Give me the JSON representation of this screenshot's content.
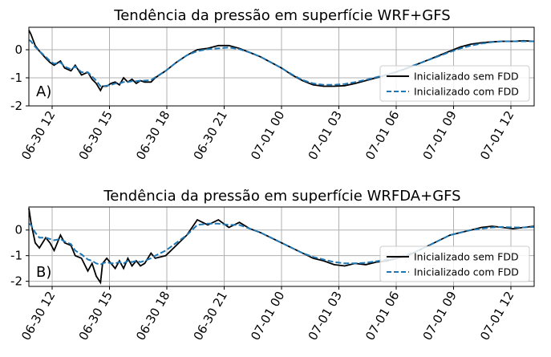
{
  "chart_data": [
    {
      "type": "line",
      "title": "Tendência da pressão em superfície WRF+GFS",
      "panel_label": "A)",
      "xlabel": "",
      "ylabel": "",
      "x_ticks": [
        "06-30 12",
        "06-30 15",
        "06-30 18",
        "06-30 21",
        "07-01 00",
        "07-01 03",
        "07-01 06",
        "07-01 09",
        "07-01 12"
      ],
      "y_ticks": [
        0,
        -1,
        -2
      ],
      "xlim": [
        0,
        24
      ],
      "ylim": [
        -2,
        0.8
      ],
      "grid": true,
      "legend_position": "lower right",
      "series": [
        {
          "name": "Inicializado sem FDD",
          "color": "#000000",
          "style": "solid",
          "x": [
            0,
            0.1,
            0.3,
            0.5,
            0.8,
            1.0,
            1.2,
            1.5,
            1.7,
            2.0,
            2.2,
            2.5,
            2.8,
            3.0,
            3.2,
            3.4,
            3.5,
            3.7,
            3.9,
            4.1,
            4.3,
            4.5,
            4.7,
            4.9,
            5.1,
            5.3,
            5.5,
            5.8,
            6.0,
            6.5,
            7,
            7.5,
            8,
            8.5,
            9,
            9.5,
            10,
            10.5,
            11,
            11.5,
            12,
            12.5,
            13,
            13.5,
            14,
            14.5,
            15,
            15.5,
            16,
            16.5,
            17,
            17.5,
            18,
            18.5,
            19,
            19.5,
            20,
            20.5,
            21,
            21.5,
            22,
            22.5,
            23,
            23.5,
            24
          ],
          "values": [
            0.7,
            0.55,
            0.15,
            -0.05,
            -0.3,
            -0.45,
            -0.55,
            -0.4,
            -0.65,
            -0.75,
            -0.55,
            -0.9,
            -0.8,
            -1.05,
            -1.2,
            -1.45,
            -1.3,
            -1.3,
            -1.2,
            -1.15,
            -1.25,
            -1.0,
            -1.15,
            -1.05,
            -1.2,
            -1.1,
            -1.15,
            -1.15,
            -1.0,
            -0.75,
            -0.45,
            -0.2,
            0.0,
            0.05,
            0.15,
            0.15,
            0.05,
            -0.1,
            -0.25,
            -0.45,
            -0.65,
            -0.9,
            -1.1,
            -1.25,
            -1.3,
            -1.3,
            -1.28,
            -1.2,
            -1.1,
            -1.0,
            -0.9,
            -0.78,
            -0.65,
            -0.5,
            -0.35,
            -0.2,
            -0.05,
            0.1,
            0.2,
            0.25,
            0.28,
            0.3,
            0.3,
            0.32,
            0.3
          ]
        },
        {
          "name": "Inicializado com FDD",
          "color": "#1f77b4",
          "style": "dashed",
          "x": [
            0,
            0.1,
            0.3,
            0.5,
            0.8,
            1.0,
            1.2,
            1.5,
            1.7,
            2.0,
            2.2,
            2.5,
            2.8,
            3.0,
            3.2,
            3.4,
            3.5,
            3.7,
            3.9,
            4.1,
            4.3,
            4.5,
            4.7,
            4.9,
            5.1,
            5.3,
            5.5,
            5.8,
            6.0,
            6.5,
            7,
            7.5,
            8,
            8.5,
            9,
            9.5,
            10,
            10.5,
            11,
            11.5,
            12,
            12.5,
            13,
            13.5,
            14,
            14.5,
            15,
            15.5,
            16,
            16.5,
            17,
            17.5,
            18,
            18.5,
            19,
            19.5,
            20,
            20.5,
            21,
            21.5,
            22,
            22.5,
            23,
            23.5,
            24
          ],
          "values": [
            0.35,
            0.3,
            0.1,
            -0.05,
            -0.25,
            -0.4,
            -0.5,
            -0.45,
            -0.6,
            -0.7,
            -0.6,
            -0.8,
            -0.8,
            -0.95,
            -1.1,
            -1.3,
            -1.3,
            -1.28,
            -1.25,
            -1.2,
            -1.2,
            -1.15,
            -1.15,
            -1.12,
            -1.12,
            -1.1,
            -1.1,
            -1.08,
            -0.98,
            -0.75,
            -0.45,
            -0.2,
            -0.05,
            0.02,
            0.05,
            0.08,
            0.02,
            -0.1,
            -0.25,
            -0.45,
            -0.65,
            -0.88,
            -1.08,
            -1.2,
            -1.25,
            -1.25,
            -1.22,
            -1.15,
            -1.07,
            -0.98,
            -0.88,
            -0.77,
            -0.63,
            -0.5,
            -0.36,
            -0.22,
            -0.08,
            0.05,
            0.15,
            0.22,
            0.27,
            0.3,
            0.3,
            0.3,
            0.3
          ]
        }
      ]
    },
    {
      "type": "line",
      "title": "Tendência da pressão em superfície WRFDA+GFS",
      "panel_label": "B)",
      "xlabel": "",
      "ylabel": "",
      "x_ticks": [
        "06-30 12",
        "06-30 15",
        "06-30 18",
        "06-30 21",
        "07-01 00",
        "07-01 03",
        "07-01 06",
        "07-01 09",
        "07-01 12"
      ],
      "y_ticks": [
        0,
        -1,
        -2
      ],
      "xlim": [
        0,
        24
      ],
      "ylim": [
        -2.2,
        0.9
      ],
      "grid": true,
      "legend_position": "lower right",
      "series": [
        {
          "name": "Inicializado sem FDD",
          "color": "#000000",
          "style": "solid",
          "x": [
            0,
            0.1,
            0.3,
            0.5,
            0.8,
            1.0,
            1.2,
            1.5,
            1.7,
            2.0,
            2.2,
            2.5,
            2.8,
            3.0,
            3.2,
            3.4,
            3.5,
            3.7,
            3.9,
            4.1,
            4.3,
            4.5,
            4.7,
            4.9,
            5.1,
            5.3,
            5.5,
            5.8,
            6.0,
            6.5,
            7,
            7.5,
            8,
            8.5,
            9,
            9.5,
            10,
            10.5,
            11,
            11.5,
            12,
            12.5,
            13,
            13.5,
            14,
            14.5,
            15,
            15.5,
            16,
            16.5,
            17,
            17.5,
            18,
            18.5,
            19,
            19.5,
            20,
            20.5,
            21,
            21.5,
            22,
            22.5,
            23,
            23.5,
            24
          ],
          "values": [
            0.85,
            0.3,
            -0.5,
            -0.7,
            -0.3,
            -0.5,
            -0.8,
            -0.2,
            -0.5,
            -0.6,
            -1.0,
            -1.1,
            -1.6,
            -1.3,
            -1.8,
            -2.05,
            -1.3,
            -1.1,
            -1.3,
            -1.5,
            -1.2,
            -1.5,
            -1.1,
            -1.4,
            -1.2,
            -1.4,
            -1.3,
            -0.9,
            -1.1,
            -1.0,
            -0.6,
            -0.2,
            0.4,
            0.2,
            0.4,
            0.1,
            0.3,
            0.05,
            -0.1,
            -0.3,
            -0.5,
            -0.7,
            -0.9,
            -1.1,
            -1.2,
            -1.35,
            -1.4,
            -1.3,
            -1.35,
            -1.25,
            -1.2,
            -1.1,
            -1.0,
            -0.8,
            -0.6,
            -0.4,
            -0.2,
            -0.1,
            0.0,
            0.1,
            0.15,
            0.1,
            0.05,
            0.1,
            0.15
          ]
        },
        {
          "name": "Inicializado com FDD",
          "color": "#1f77b4",
          "style": "dashed",
          "x": [
            0,
            0.1,
            0.3,
            0.5,
            0.8,
            1.0,
            1.2,
            1.5,
            1.7,
            2.0,
            2.2,
            2.5,
            2.8,
            3.0,
            3.2,
            3.4,
            3.5,
            3.7,
            3.9,
            4.1,
            4.3,
            4.5,
            4.7,
            4.9,
            5.1,
            5.3,
            5.5,
            5.8,
            6.0,
            6.5,
            7,
            7.5,
            8,
            8.5,
            9,
            9.5,
            10,
            10.5,
            11,
            11.5,
            12,
            12.5,
            13,
            13.5,
            14,
            14.5,
            15,
            15.5,
            16,
            16.5,
            17,
            17.5,
            18,
            18.5,
            19,
            19.5,
            20,
            20.5,
            21,
            21.5,
            22,
            22.5,
            23,
            23.5,
            24
          ],
          "values": [
            0.25,
            0.2,
            -0.1,
            -0.3,
            -0.3,
            -0.35,
            -0.4,
            -0.35,
            -0.45,
            -0.55,
            -0.8,
            -0.95,
            -1.15,
            -1.2,
            -1.3,
            -1.35,
            -1.3,
            -1.25,
            -1.3,
            -1.3,
            -1.25,
            -1.3,
            -1.2,
            -1.25,
            -1.2,
            -1.25,
            -1.2,
            -1.1,
            -1.0,
            -0.8,
            -0.5,
            -0.2,
            0.2,
            0.25,
            0.25,
            0.2,
            0.2,
            0.05,
            -0.1,
            -0.3,
            -0.5,
            -0.7,
            -0.9,
            -1.05,
            -1.15,
            -1.25,
            -1.3,
            -1.3,
            -1.28,
            -1.22,
            -1.15,
            -1.05,
            -0.95,
            -0.8,
            -0.6,
            -0.4,
            -0.2,
            -0.1,
            0.0,
            0.05,
            0.1,
            0.12,
            0.1,
            0.1,
            0.12
          ]
        }
      ]
    }
  ]
}
